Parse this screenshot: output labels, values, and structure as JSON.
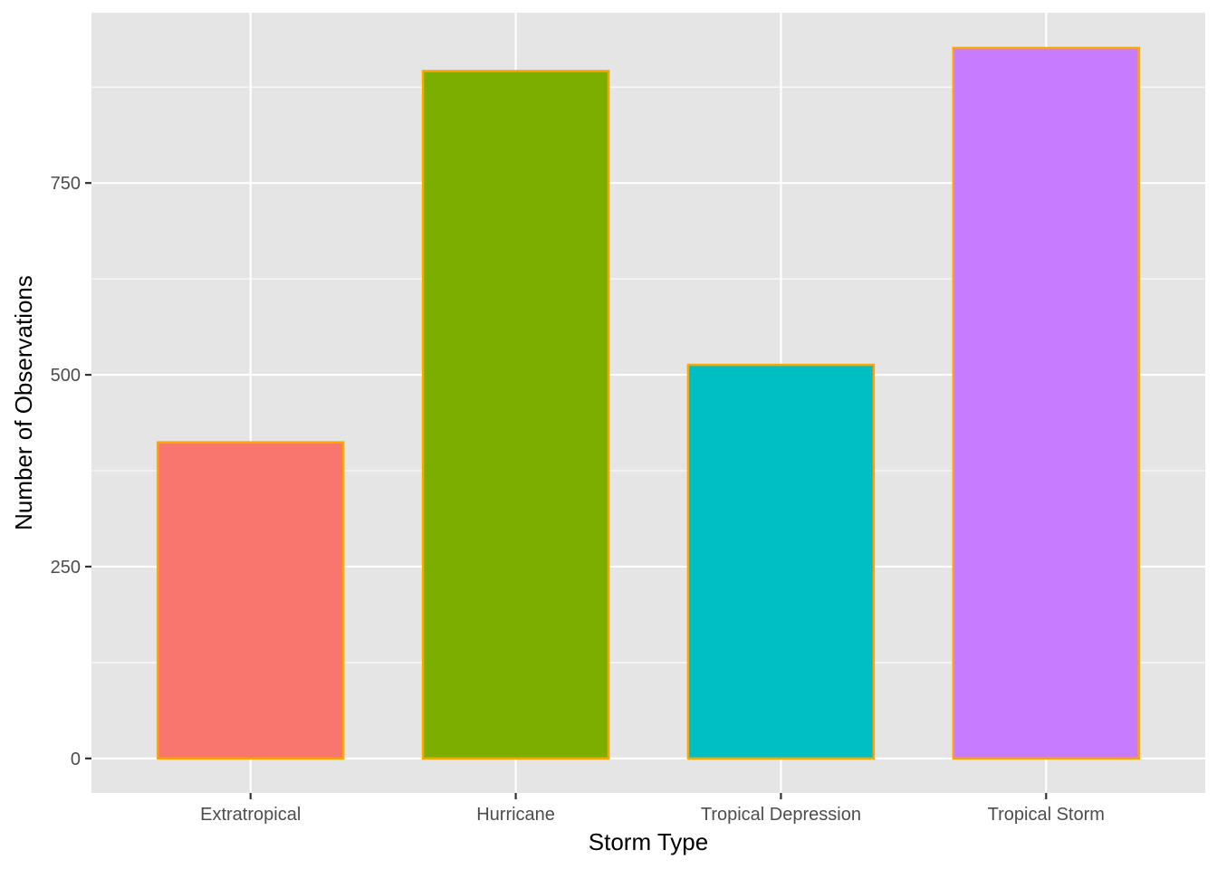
{
  "chart_data": {
    "type": "bar",
    "title": "",
    "xlabel": "Storm Type",
    "ylabel": "Number of Observations",
    "categories": [
      "Extratropical",
      "Hurricane",
      "Tropical Depression",
      "Tropical Storm"
    ],
    "values": [
      412,
      896,
      513,
      926
    ],
    "ylim": [
      -45,
      972
    ],
    "yticks": [
      0,
      250,
      500,
      750
    ],
    "ytick_labels": [
      "0",
      "250",
      "500",
      "750"
    ],
    "grid": true,
    "legend": "none",
    "colors": {
      "bar_fills": [
        "#F8766D",
        "#7CAE00",
        "#00BFC4",
        "#C77CFF"
      ],
      "bar_outline": "#FFA500",
      "panel_background": "#E5E5E5",
      "grid": "#FFFFFF"
    }
  }
}
